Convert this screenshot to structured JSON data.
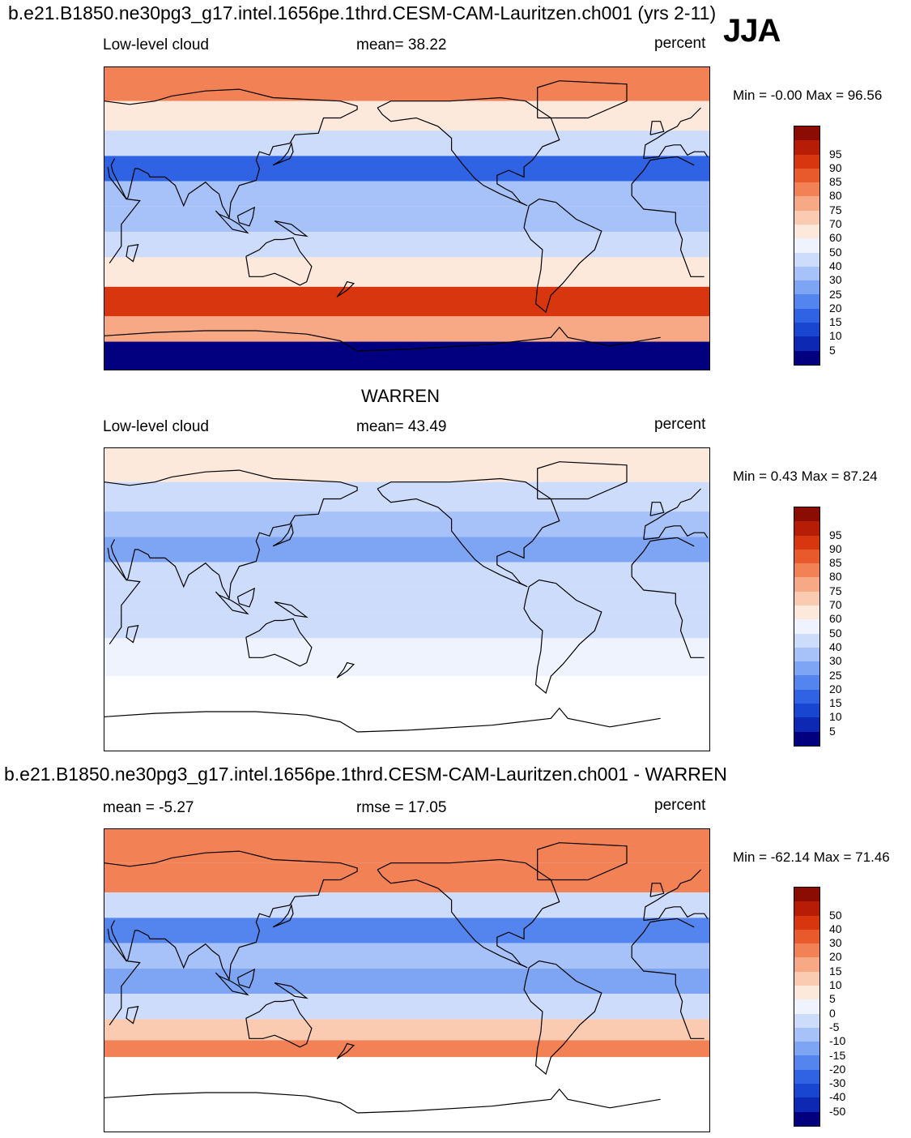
{
  "header": {
    "case_title": "b.e21.B1850.ne30pg3_g17.intel.1656pe.1thrd.CESM-CAM-Lauritzen.ch001 (yrs 2-11)",
    "season": "JJA",
    "obs_title": "WARREN",
    "diff_title": "b.e21.B1850.ne30pg3_g17.intel.1656pe.1thrd.CESM-CAM-Lauritzen.ch001 - WARREN"
  },
  "colors": {
    "abs_scale": [
      "#02007f",
      "#0d28b2",
      "#1846d0",
      "#2f63e4",
      "#5485ee",
      "#7ea4f4",
      "#a7c2f8",
      "#cddcfb",
      "#eef3fd",
      "#fde8dc",
      "#fbcbb1",
      "#f7a885",
      "#f28156",
      "#e85a2b",
      "#d8360e",
      "#b61c06",
      "#8a0c03"
    ],
    "diff_scale": [
      "#02007f",
      "#0d28b2",
      "#1846d0",
      "#2f63e4",
      "#5485ee",
      "#7ea4f4",
      "#a7c2f8",
      "#cddcfb",
      "#eef3fd",
      "#fde8dc",
      "#fbcbb1",
      "#f7a885",
      "#f28156",
      "#e85a2b",
      "#d8360e",
      "#b61c06",
      "#8a0c03"
    ],
    "missing": "#ffffff",
    "coast": "#000000"
  },
  "chart_data": [
    {
      "type": "heatmap",
      "panel": "model",
      "variable_label": "Low-level cloud",
      "stat_text": "mean=  38.22",
      "mean": 38.22,
      "units": "percent",
      "minmax_text": "Min =  -0.00 Max =  96.56",
      "min": -0.0,
      "max": 96.56,
      "colorbar_levels": [
        "5",
        "10",
        "15",
        "20",
        "25",
        "30",
        "40",
        "50",
        "60",
        "70",
        "75",
        "80",
        "85",
        "90",
        "95"
      ],
      "lat_bands": [
        {
          "lat": "80N",
          "value": 80
        },
        {
          "lat": "60N",
          "value": 65
        },
        {
          "lat": "45N",
          "value": 40
        },
        {
          "lat": "30N",
          "value": 15
        },
        {
          "lat": "15N",
          "value": 32
        },
        {
          "lat": "EQ",
          "value": 35
        },
        {
          "lat": "15S",
          "value": 45
        },
        {
          "lat": "30S",
          "value": 60
        },
        {
          "lat": "50S",
          "value": 90
        },
        {
          "lat": "65S",
          "value": 75
        },
        {
          "lat": "80S",
          "value": 3
        }
      ]
    },
    {
      "type": "heatmap",
      "panel": "obs",
      "variable_label": "Low-level cloud",
      "stat_text": "mean=  43.49",
      "mean": 43.49,
      "units": "percent",
      "minmax_text": "Min =   0.43 Max =  87.24",
      "min": 0.43,
      "max": 87.24,
      "colorbar_levels": [
        "5",
        "10",
        "15",
        "20",
        "25",
        "30",
        "40",
        "50",
        "60",
        "70",
        "75",
        "80",
        "85",
        "90",
        "95"
      ],
      "lat_bands": [
        {
          "lat": "80N",
          "value": 60
        },
        {
          "lat": "60N",
          "value": 40
        },
        {
          "lat": "45N",
          "value": 35
        },
        {
          "lat": "30N",
          "value": 25
        },
        {
          "lat": "15N",
          "value": 40
        },
        {
          "lat": "EQ",
          "value": 42
        },
        {
          "lat": "15S",
          "value": 45
        },
        {
          "lat": "30S",
          "value": 50
        },
        {
          "lat": "40S",
          "value": 55
        }
      ]
    },
    {
      "type": "heatmap",
      "panel": "difference",
      "variable_label": "",
      "stat_text": "mean =  -5.27",
      "mean": -5.27,
      "rmse_text": "rmse =  17.05",
      "rmse": 17.05,
      "units": "percent",
      "minmax_text": "Min = -62.14 Max =  71.46",
      "min": -62.14,
      "max": 71.46,
      "colorbar_levels": [
        "-50",
        "-40",
        "-30",
        "-20",
        "-15",
        "-10",
        "-5",
        "0",
        "5",
        "10",
        "15",
        "20",
        "30",
        "40",
        "50"
      ],
      "lat_bands": [
        {
          "lat": "80N",
          "value": 25
        },
        {
          "lat": "60N",
          "value": 20
        },
        {
          "lat": "45N",
          "value": -5
        },
        {
          "lat": "30N",
          "value": -20
        },
        {
          "lat": "15N",
          "value": -10
        },
        {
          "lat": "EQ",
          "value": -12
        },
        {
          "lat": "15S",
          "value": -5
        },
        {
          "lat": "30S",
          "value": 10
        },
        {
          "lat": "40S",
          "value": 20
        }
      ]
    }
  ]
}
